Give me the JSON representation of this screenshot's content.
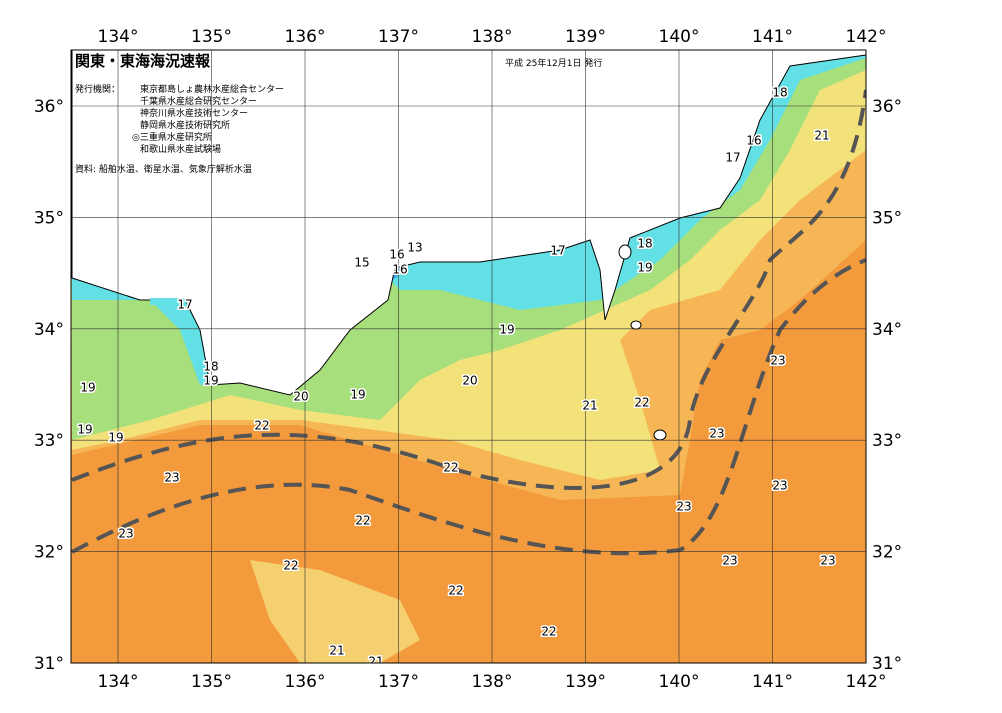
{
  "header": {
    "title": "関東・東海海況速報",
    "date": "平成 25年12月1日 発行",
    "issuer_label": "発行機関：",
    "issuers": [
      "東京都島しょ農林水産総合センター",
      "千葉県水産総合研究センター",
      "神奈川県水産技術センター",
      "静岡県水産技術研究所",
      "◎三重県水産研究所",
      "和歌山県水産試験場"
    ],
    "source": "資料: 船舶水温、衛星水温、気象庁解析水温"
  },
  "map": {
    "lon_ticks": [
      {
        "value": 134,
        "label": "134°"
      },
      {
        "value": 135,
        "label": "135°"
      },
      {
        "value": 136,
        "label": "136°"
      },
      {
        "value": 137,
        "label": "137°"
      },
      {
        "value": 138,
        "label": "138°"
      },
      {
        "value": 139,
        "label": "139°"
      },
      {
        "value": 140,
        "label": "140°"
      },
      {
        "value": 141,
        "label": "141°"
      },
      {
        "value": 142,
        "label": "142°"
      }
    ],
    "lat_ticks": [
      {
        "value": 36,
        "label": "36°"
      },
      {
        "value": 35,
        "label": "35°"
      },
      {
        "value": 34,
        "label": "34°"
      },
      {
        "value": 33,
        "label": "33°"
      },
      {
        "value": 32,
        "label": "32°"
      },
      {
        "value": 31,
        "label": "31°"
      }
    ],
    "contour_labels": [
      18,
      21,
      16,
      17,
      17,
      18,
      19,
      15,
      16,
      16,
      13,
      17,
      18,
      19,
      19,
      19,
      19,
      20,
      19,
      20,
      19,
      21,
      22,
      23,
      23,
      23,
      23,
      23,
      23,
      22,
      22,
      23,
      23,
      22,
      22,
      22,
      22,
      21,
      21
    ]
  }
}
